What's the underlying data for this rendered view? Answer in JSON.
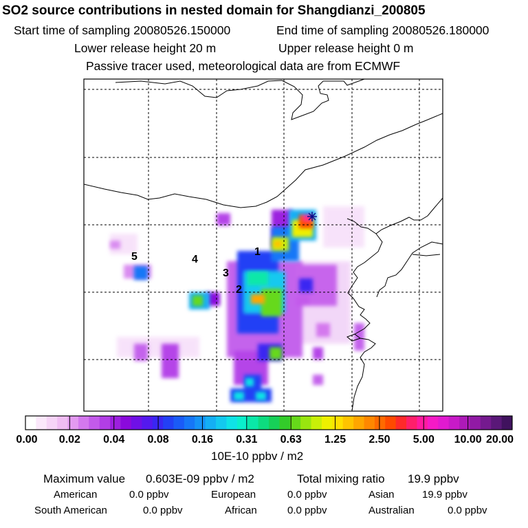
{
  "header": {
    "title": "SO2 source contributions in nested domain for Shangdianzi_200805",
    "start_label": "Start time of sampling 20080526.150000",
    "end_label": "End time of sampling 20080526.180000",
    "lower_label": "Lower release height   20 m",
    "upper_label": "Upper release height    0 m",
    "tracer_label": "Passive tracer used, meteorological data are from ECMWF"
  },
  "map": {
    "site_labels": [
      "1",
      "2",
      "3",
      "4",
      "5"
    ],
    "receptor_marker": "star-cross"
  },
  "colorbar": {
    "tick_labels": [
      "0.00",
      "0.02",
      "0.04",
      "0.08",
      "0.16",
      "0.31",
      "0.63",
      "1.25",
      "2.50",
      "5.00",
      "10.00",
      "20.00"
    ],
    "colors": [
      "#ffffff",
      "#fbe8fb",
      "#f6d4f7",
      "#f0bdf3",
      "#e39af0",
      "#d478ee",
      "#c35aeb",
      "#b23ee6",
      "#9d1fdf",
      "#8a0adc",
      "#6f10e6",
      "#5419ee",
      "#3a26f2",
      "#2340f5",
      "#1a5bf7",
      "#1677f7",
      "#1593f6",
      "#14aff4",
      "#13c9ef",
      "#0fe3e6",
      "#0af0cc",
      "#0ae8a8",
      "#0ddc7f",
      "#17d058",
      "#33cc2a",
      "#66d91a",
      "#99e60f",
      "#c8ef08",
      "#eef000",
      "#ffe000",
      "#ffc400",
      "#ffa600",
      "#ff8800",
      "#ff6a00",
      "#ff4a00",
      "#ff2a2a",
      "#ff1f6a",
      "#ff1aa0",
      "#f51ac6",
      "#e11ad0",
      "#c81ac8",
      "#ad1ab8",
      "#911aa5",
      "#751a8f",
      "#5a1878",
      "#40125e"
    ],
    "units": "10E-10 ppbv / m2"
  },
  "summary": {
    "max_label": "Maximum value",
    "max_value": "0.603E-09 ppbv / m2",
    "total_label": "Total mixing ratio",
    "total_value": "19.9 ppbv",
    "contributions": [
      {
        "name": "American",
        "value": "0.0 ppbv"
      },
      {
        "name": "European",
        "value": "0.0 ppbv"
      },
      {
        "name": "Asian",
        "value": "19.9 ppbv"
      },
      {
        "name": "South American",
        "value": "0.0 ppbv"
      },
      {
        "name": "African",
        "value": "0.0 ppbv"
      },
      {
        "name": "Australian",
        "value": "0.0 ppbv"
      }
    ]
  }
}
